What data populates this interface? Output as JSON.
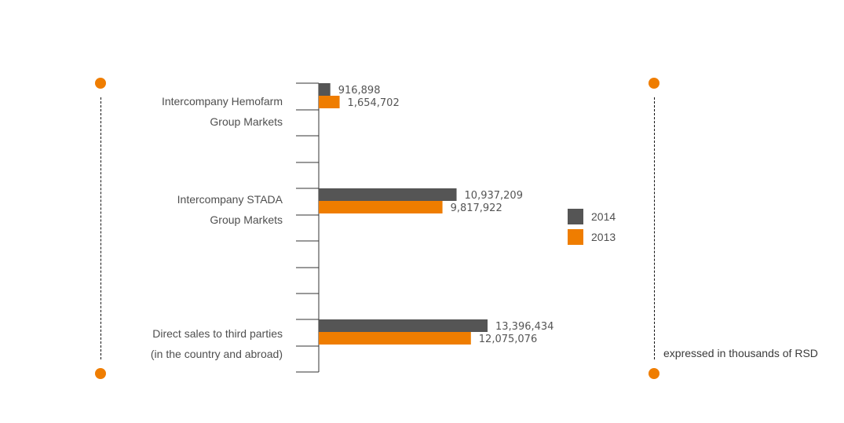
{
  "colors": {
    "y2014": "#555555",
    "y2013": "#EF7D00",
    "accent": "#EF7D00",
    "axis": "#333333"
  },
  "categories": [
    {
      "line1": "Intercompany Hemofarm",
      "line2": "Group Markets"
    },
    {
      "line1": "Intercompany STADA",
      "line2": "Group Markets"
    },
    {
      "line1": "Direct sales to third parties",
      "line2": "(in the country and abroad)"
    }
  ],
  "legend": {
    "y2014": "2014",
    "y2013": "2013"
  },
  "note": "expressed in thousands of RSD",
  "chart_data": {
    "type": "bar",
    "orientation": "horizontal",
    "categories": [
      "Intercompany Hemofarm Group Markets",
      "Intercompany STADA Group Markets",
      "Direct sales to third parties (in the country and abroad)"
    ],
    "series": [
      {
        "name": "2014",
        "values": [
          916898,
          10937209,
          13396434
        ],
        "labels": [
          "916,898",
          "10,937,209",
          "13,396,434"
        ]
      },
      {
        "name": "2013",
        "values": [
          1654702,
          9817922,
          12075076
        ],
        "labels": [
          "1,654,702",
          "9,817,922",
          "12,075,076"
        ]
      }
    ],
    "xlim": [
      0,
      13396434
    ],
    "legend_position": "right"
  }
}
